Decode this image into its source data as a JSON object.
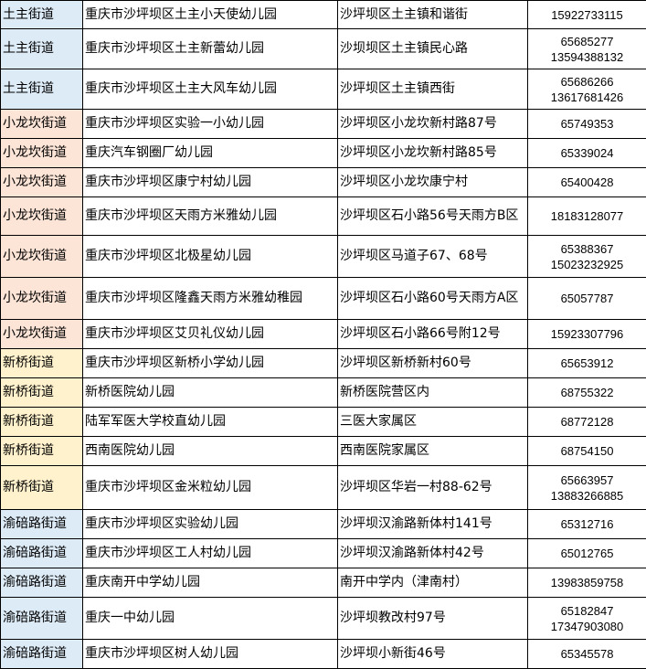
{
  "street_colors": {
    "土主街道": "#ddebf7",
    "小龙坎街道": "#fce4d6",
    "新桥街道": "#fff2cc",
    "渝碚路街道": "#ddebf7"
  },
  "rows": [
    {
      "street": "土主街道",
      "name": "重庆市沙坪坝区土主小天使幼儿园",
      "address": "沙坪坝区土主镇和谐街",
      "phones": [
        "15922733115"
      ]
    },
    {
      "street": "土主街道",
      "name": "重庆市沙坪坝区土主新蕾幼儿园",
      "address": "沙坝坝区土主镇民心路",
      "phones": [
        "65685277",
        "13594388132"
      ]
    },
    {
      "street": "土主街道",
      "name": "重庆市沙坪坝区土主大风车幼儿园",
      "address": "沙坪坝区土主镇西街",
      "phones": [
        "65686266",
        "13617681426"
      ]
    },
    {
      "street": "小龙坎街道",
      "name": "重庆市沙坪坝区实验一小幼儿园",
      "address": "沙坪坝区小龙坎新村路87号",
      "phones": [
        "65749353"
      ]
    },
    {
      "street": "小龙坎街道",
      "name": "重庆汽车钢圈厂幼儿园",
      "address": "沙坪坝区小龙坎新村路85号",
      "phones": [
        "65339024"
      ]
    },
    {
      "street": "小龙坎街道",
      "name": "重庆市沙坪坝区康宁村幼儿园",
      "address": "沙坪坝区小龙坎康宁村",
      "phones": [
        "65400428"
      ]
    },
    {
      "street": "小龙坎街道",
      "name": "重庆市沙坪坝区天雨方米雅幼儿园",
      "address": "沙坪坝区石小路56号天雨方B区",
      "phones": [
        "18183128077"
      ]
    },
    {
      "street": "小龙坎街道",
      "name": "重庆市沙坪坝区北极星幼儿园",
      "address": "沙坪坝区马道子67、68号",
      "phones": [
        "65388367",
        "15023232925"
      ]
    },
    {
      "street": "小龙坎街道",
      "name": "重庆市沙坪坝区隆鑫天雨方米雅幼稚园",
      "address": "沙坪坝区石小路60号天雨方A区",
      "phones": [
        "65057787"
      ]
    },
    {
      "street": "小龙坎街道",
      "name": "重庆市沙坪坝区艾贝礼仪幼儿园",
      "address": "沙坪坝区石小路66号附12号",
      "phones": [
        "15923307796"
      ]
    },
    {
      "street": "新桥街道",
      "name": "重庆市沙坪坝区新桥小学幼儿园",
      "address": "沙坪坝区新桥新村60号",
      "phones": [
        "65653912"
      ]
    },
    {
      "street": "新桥街道",
      "name": "新桥医院幼儿园",
      "address": "新桥医院营区内",
      "phones": [
        "68755322"
      ]
    },
    {
      "street": "新桥街道",
      "name": "陆军军医大学校直幼儿园",
      "address": "三医大家属区",
      "phones": [
        "68772128"
      ]
    },
    {
      "street": "新桥街道",
      "name": "西南医院幼儿园",
      "address": "西南医院家属区",
      "phones": [
        "68754150"
      ]
    },
    {
      "street": "新桥街道",
      "name": "重庆市沙坪坝区金米粒幼儿园",
      "address": "沙坪坝区华岩一村88-62号",
      "phones": [
        "65663957",
        "13883266885"
      ]
    },
    {
      "street": "渝碚路街道",
      "name": "重庆市沙坪坝区实验幼儿园",
      "address": "沙坪坝汉渝路新体村141号",
      "phones": [
        "65312716"
      ]
    },
    {
      "street": "渝碚路街道",
      "name": "重庆市沙坪坝区工人村幼儿园",
      "address": "沙坪坝汉渝路新体村42号",
      "phones": [
        "65012765"
      ]
    },
    {
      "street": "渝碚路街道",
      "name": "重庆南开中学幼儿园",
      "address": "南开中学内（津南村）",
      "phones": [
        "13983859758"
      ]
    },
    {
      "street": "渝碚路街道",
      "name": "重庆一中幼儿园",
      "address": "沙坪坝教改村97号",
      "phones": [
        "65182847",
        "17347903080"
      ]
    },
    {
      "street": "渝碚路街道",
      "name": "重庆市沙坪坝区树人幼儿园",
      "address": "沙坪坝小新街46号",
      "phones": [
        "65345578"
      ]
    }
  ]
}
